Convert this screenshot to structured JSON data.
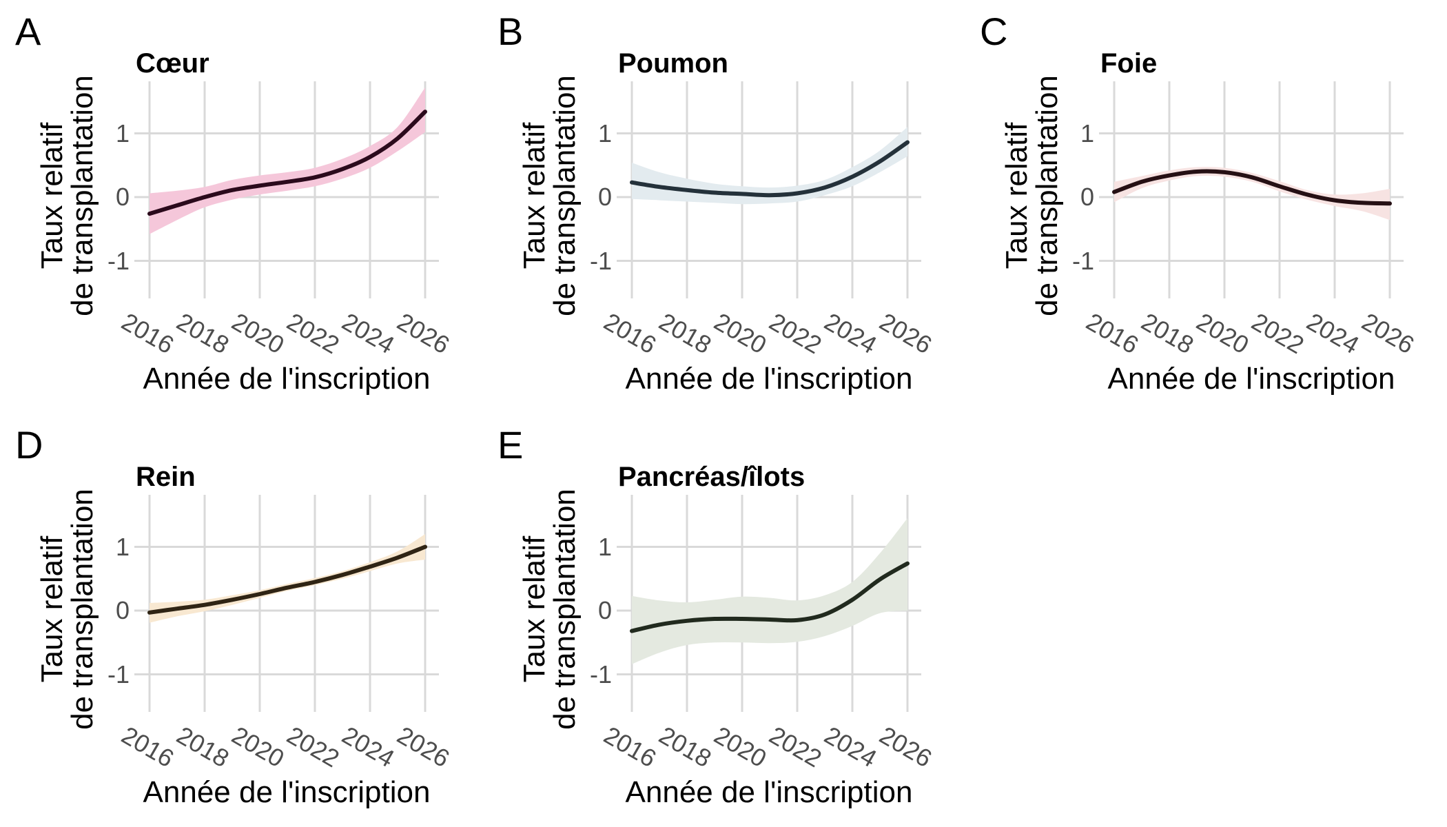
{
  "figure": {
    "background": "#ffffff",
    "grid_color": "#d9d9d9",
    "tick_label_color": "#4d4d4d",
    "text_color": "#000000"
  },
  "chart_data": [
    {
      "type": "line",
      "letter": "A",
      "title": "Cœur",
      "xlabel": "Année de l'inscription",
      "ylabel_line1": "Taux relatif",
      "ylabel_line2": "de transplantation",
      "x_ticks": [
        2016,
        2018,
        2020,
        2022,
        2024,
        2026
      ],
      "y_ticks": [
        1,
        0,
        -1
      ],
      "xlim": [
        2015.45,
        2026.55
      ],
      "ylim": [
        -1.6,
        1.82
      ],
      "grid": true,
      "legend": "none",
      "x": [
        2016,
        2017,
        2018,
        2019,
        2020,
        2021,
        2022,
        2023,
        2024,
        2025,
        2026
      ],
      "values": [
        -0.26,
        -0.13,
        0.0,
        0.11,
        0.18,
        0.24,
        0.31,
        0.44,
        0.63,
        0.92,
        1.34
      ],
      "band_upper": [
        0.06,
        0.1,
        0.16,
        0.27,
        0.34,
        0.39,
        0.46,
        0.6,
        0.8,
        1.1,
        1.72
      ],
      "band_lower": [
        -0.58,
        -0.36,
        -0.16,
        -0.04,
        0.04,
        0.1,
        0.17,
        0.29,
        0.46,
        0.72,
        1.02
      ],
      "line_color": "#2b0a1c",
      "band_color": "#f5c7da"
    },
    {
      "type": "line",
      "letter": "B",
      "title": "Poumon",
      "xlabel": "Année de l'inscription",
      "ylabel_line1": "Taux relatif",
      "ylabel_line2": "de transplantation",
      "x_ticks": [
        2016,
        2018,
        2020,
        2022,
        2024,
        2026
      ],
      "y_ticks": [
        1,
        0,
        -1
      ],
      "xlim": [
        2015.45,
        2026.55
      ],
      "ylim": [
        -1.6,
        1.82
      ],
      "grid": true,
      "legend": "none",
      "x": [
        2016,
        2017,
        2018,
        2019,
        2020,
        2021,
        2022,
        2023,
        2024,
        2025,
        2026
      ],
      "values": [
        0.23,
        0.16,
        0.11,
        0.07,
        0.05,
        0.03,
        0.06,
        0.15,
        0.32,
        0.56,
        0.86
      ],
      "band_upper": [
        0.54,
        0.39,
        0.29,
        0.21,
        0.17,
        0.15,
        0.18,
        0.27,
        0.47,
        0.73,
        1.1
      ],
      "band_lower": [
        -0.03,
        -0.05,
        -0.07,
        -0.09,
        -0.11,
        -0.1,
        -0.07,
        0.03,
        0.17,
        0.39,
        0.64
      ],
      "line_color": "#24313a",
      "band_color": "#e3ebef"
    },
    {
      "type": "line",
      "letter": "C",
      "title": "Foie",
      "xlabel": "Année de l'inscription",
      "ylabel_line1": "Taux relatif",
      "ylabel_line2": "de transplantation",
      "x_ticks": [
        2016,
        2018,
        2020,
        2022,
        2024,
        2026
      ],
      "y_ticks": [
        1,
        0,
        -1
      ],
      "xlim": [
        2015.45,
        2026.55
      ],
      "ylim": [
        -1.6,
        1.82
      ],
      "grid": true,
      "legend": "none",
      "x": [
        2016,
        2017,
        2018,
        2019,
        2020,
        2021,
        2022,
        2023,
        2024,
        2025,
        2026
      ],
      "values": [
        0.08,
        0.24,
        0.34,
        0.4,
        0.39,
        0.31,
        0.17,
        0.04,
        -0.05,
        -0.09,
        -0.1
      ],
      "band_upper": [
        0.24,
        0.33,
        0.42,
        0.47,
        0.46,
        0.38,
        0.25,
        0.11,
        0.04,
        0.06,
        0.13
      ],
      "band_lower": [
        -0.08,
        0.14,
        0.26,
        0.33,
        0.32,
        0.24,
        0.09,
        -0.04,
        -0.14,
        -0.22,
        -0.36
      ],
      "line_color": "#261014",
      "band_color": "#f7e3e2"
    },
    {
      "type": "line",
      "letter": "D",
      "title": "Rein",
      "xlabel": "Année de l'inscription",
      "ylabel_line1": "Taux relatif",
      "ylabel_line2": "de transplantation",
      "x_ticks": [
        2016,
        2018,
        2020,
        2022,
        2024,
        2026
      ],
      "y_ticks": [
        1,
        0,
        -1
      ],
      "xlim": [
        2015.45,
        2026.55
      ],
      "ylim": [
        -1.6,
        1.82
      ],
      "grid": true,
      "legend": "none",
      "x": [
        2016,
        2017,
        2018,
        2019,
        2020,
        2021,
        2022,
        2023,
        2024,
        2025,
        2026
      ],
      "values": [
        -0.03,
        0.03,
        0.09,
        0.17,
        0.26,
        0.36,
        0.45,
        0.56,
        0.69,
        0.83,
        1.0
      ],
      "band_upper": [
        0.12,
        0.14,
        0.17,
        0.24,
        0.32,
        0.42,
        0.51,
        0.62,
        0.76,
        0.93,
        1.2
      ],
      "band_lower": [
        -0.19,
        -0.09,
        -0.01,
        0.09,
        0.2,
        0.31,
        0.4,
        0.5,
        0.62,
        0.74,
        0.8
      ],
      "line_color": "#2f2414",
      "band_color": "#f8e8d1"
    },
    {
      "type": "line",
      "letter": "E",
      "title": "Pancréas/îlots",
      "xlabel": "Année de l'inscription",
      "ylabel_line1": "Taux relatif",
      "ylabel_line2": "de transplantation",
      "x_ticks": [
        2016,
        2018,
        2020,
        2022,
        2024,
        2026
      ],
      "y_ticks": [
        1,
        0,
        -1
      ],
      "xlim": [
        2015.45,
        2026.55
      ],
      "ylim": [
        -1.6,
        1.82
      ],
      "grid": true,
      "legend": "none",
      "x": [
        2016,
        2017,
        2018,
        2019,
        2020,
        2021,
        2022,
        2023,
        2024,
        2025,
        2026
      ],
      "values": [
        -0.32,
        -0.22,
        -0.16,
        -0.13,
        -0.13,
        -0.14,
        -0.15,
        -0.06,
        0.17,
        0.49,
        0.74
      ],
      "band_upper": [
        0.23,
        0.16,
        0.13,
        0.17,
        0.22,
        0.2,
        0.16,
        0.24,
        0.45,
        0.9,
        1.45
      ],
      "band_lower": [
        -0.84,
        -0.66,
        -0.54,
        -0.5,
        -0.5,
        -0.51,
        -0.49,
        -0.4,
        -0.24,
        -0.04,
        0.0
      ],
      "line_color": "#212a1e",
      "band_color": "#e4e9e0"
    }
  ]
}
